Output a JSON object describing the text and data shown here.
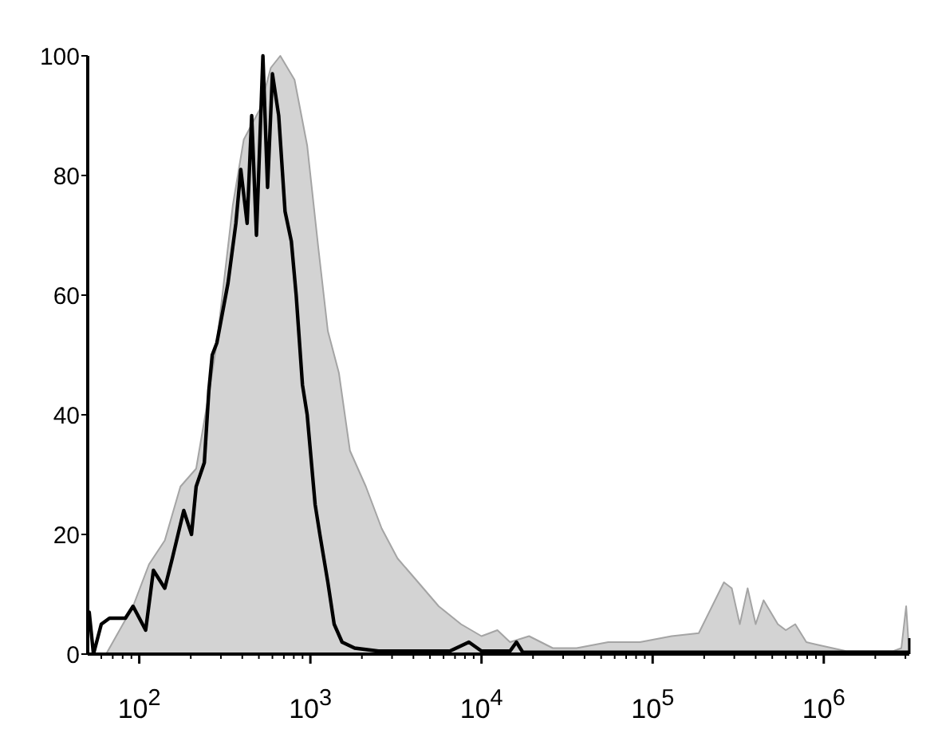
{
  "chart_data": {
    "type": "area",
    "log": "x",
    "xlim": [
      50,
      3160000
    ],
    "ylim": [
      0,
      100
    ],
    "xticks": [
      {
        "value": 60,
        "label": null
      },
      {
        "value": 70,
        "label": null
      },
      {
        "value": 80,
        "label": null
      },
      {
        "value": 90,
        "label": null
      },
      {
        "value": 100,
        "label": "10$^{2}$"
      },
      {
        "value": 200,
        "label": null
      },
      {
        "value": 300,
        "label": null
      },
      {
        "value": 400,
        "label": null
      },
      {
        "value": 500,
        "label": null
      },
      {
        "value": 600,
        "label": null
      },
      {
        "value": 700,
        "label": null
      },
      {
        "value": 800,
        "label": null
      },
      {
        "value": 900,
        "label": null
      },
      {
        "value": 1000,
        "label": "10$^{3}$"
      },
      {
        "value": 2000,
        "label": null
      },
      {
        "value": 3000,
        "label": null
      },
      {
        "value": 4000,
        "label": null
      },
      {
        "value": 5000,
        "label": null
      },
      {
        "value": 6000,
        "label": null
      },
      {
        "value": 7000,
        "label": null
      },
      {
        "value": 8000,
        "label": null
      },
      {
        "value": 9000,
        "label": null
      },
      {
        "value": 10000,
        "label": "10$^{4}$"
      },
      {
        "value": 20000,
        "label": null
      },
      {
        "value": 30000,
        "label": null
      },
      {
        "value": 40000,
        "label": null
      },
      {
        "value": 50000,
        "label": null
      },
      {
        "value": 60000,
        "label": null
      },
      {
        "value": 70000,
        "label": null
      },
      {
        "value": 80000,
        "label": null
      },
      {
        "value": 90000,
        "label": null
      },
      {
        "value": 100000,
        "label": "10$^{5}$"
      },
      {
        "value": 200000,
        "label": null
      },
      {
        "value": 300000,
        "label": null
      },
      {
        "value": 400000,
        "label": null
      },
      {
        "value": 500000,
        "label": null
      },
      {
        "value": 600000,
        "label": null
      },
      {
        "value": 700000,
        "label": null
      },
      {
        "value": 800000,
        "label": null
      },
      {
        "value": 900000,
        "label": null
      },
      {
        "value": 1000000,
        "label": "10$^{6}$"
      },
      {
        "value": 2000000,
        "label": null
      },
      {
        "value": 3000000,
        "label": null
      }
    ],
    "yticks": [
      0,
      20,
      40,
      60,
      80,
      100
    ],
    "grid": false,
    "series": [
      {
        "color": "#d3d3d3",
        "x": [
          64,
          92,
          114,
          141,
          174,
          215,
          250,
          284,
          352,
          408,
          505,
          587,
          667,
          808,
          958,
          1112,
          1265,
          1468,
          1703,
          2110,
          2610,
          3230,
          4265,
          5620,
          7590,
          10000,
          12380,
          14680,
          18970,
          26100,
          35940,
          55000,
          84300,
          129000,
          186000,
          261000,
          290000,
          323000,
          359000,
          400000,
          445000,
          539000,
          600000,
          681000,
          791000,
          938000,
          1350000,
          2550000,
          2840000,
          3030000,
          3160000
        ],
        "values": [
          0,
          8,
          15,
          19,
          28,
          31,
          42,
          52,
          75,
          86,
          91,
          98,
          100,
          96,
          85,
          68,
          54,
          47,
          34,
          28,
          21,
          16,
          12,
          8,
          5,
          3,
          4,
          2,
          3,
          1,
          1,
          2,
          2,
          3,
          3.5,
          12,
          11,
          5,
          11,
          5,
          9,
          5,
          4,
          5,
          2,
          1.5,
          0.5,
          0.5,
          1,
          8,
          0
        ]
      },
      {
        "type": "line",
        "color": "#000000",
        "x": [
          51,
          54,
          60,
          67,
          83,
          92,
          109,
          121,
          141,
          156,
          182,
          202,
          215,
          240,
          255,
          267,
          284,
          330,
          367,
          392,
          427,
          454,
          484,
          528,
          562,
          600,
          653,
          711,
          774,
          826,
          899,
          958,
          1066,
          1136,
          1265,
          1377,
          1532,
          1815,
          2500,
          6530,
          8440,
          10000,
          14680,
          16000,
          17420,
          26100,
          3160000
        ],
        "values": [
          7,
          0,
          5,
          6,
          6,
          8,
          4,
          14,
          11,
          16,
          24,
          20,
          28,
          32,
          44,
          50,
          52,
          62,
          72,
          81,
          72,
          90,
          70,
          100,
          78,
          97,
          90,
          74,
          69,
          60,
          45,
          40,
          25,
          20,
          12,
          5,
          2,
          1,
          0.5,
          0.5,
          2,
          0.5,
          0.5,
          2,
          0.3,
          0.3,
          0.3
        ]
      }
    ]
  }
}
